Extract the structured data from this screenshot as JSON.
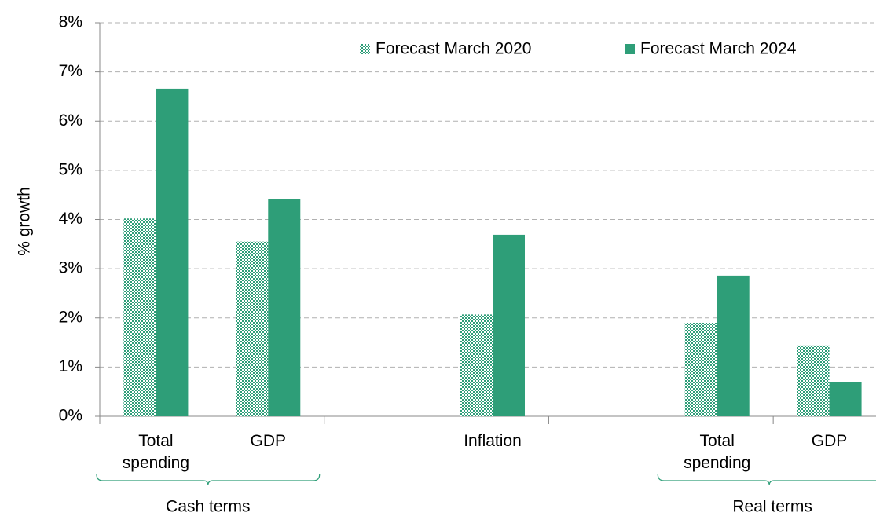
{
  "chart_data": {
    "type": "bar",
    "y_label": "% growth",
    "categories": [
      "Total spending",
      "GDP",
      null,
      "Inflation",
      null,
      "Total spending",
      "GDP"
    ],
    "groups": [
      "Cash terms",
      "Real terms"
    ],
    "series": [
      {
        "name": "Forecast March 2020",
        "color": "#2e9e78",
        "pattern": "dotted",
        "values": [
          4.02,
          3.55,
          null,
          2.07,
          null,
          1.9,
          1.44
        ]
      },
      {
        "name": "Forecast March 2024",
        "color": "#2e9e78",
        "values": [
          6.66,
          4.41,
          null,
          3.69,
          null,
          2.86,
          0.69
        ]
      }
    ],
    "ylim": [
      0,
      8
    ],
    "yticks": [
      {
        "value": 0,
        "label": "0%"
      },
      {
        "value": 1,
        "label": "1%"
      },
      {
        "value": 2,
        "label": "2%"
      },
      {
        "value": 3,
        "label": "3%"
      },
      {
        "value": 4,
        "label": "4%"
      },
      {
        "value": 5,
        "label": "5%"
      },
      {
        "value": 6,
        "label": "6%"
      },
      {
        "value": 7,
        "label": "7%"
      },
      {
        "value": 8,
        "label": "8%"
      }
    ],
    "grid": true,
    "legend": "top-right"
  }
}
